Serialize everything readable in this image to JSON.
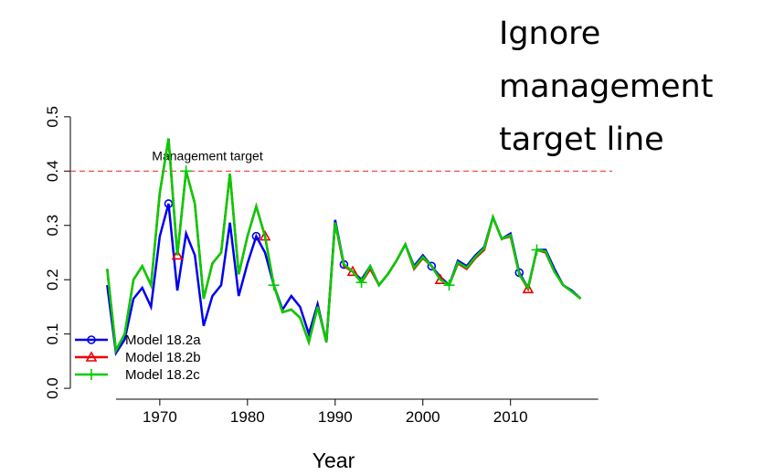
{
  "chart_data": {
    "type": "line",
    "x_label": "Year",
    "note": "Ignore management target line",
    "reference_line": {
      "value": 0.4,
      "label": "Management target",
      "color": "#ee3b3b"
    },
    "x": [
      1964,
      1965,
      1966,
      1967,
      1968,
      1969,
      1970,
      1971,
      1972,
      1973,
      1974,
      1975,
      1976,
      1977,
      1978,
      1979,
      1980,
      1981,
      1982,
      1983,
      1984,
      1985,
      1986,
      1987,
      1988,
      1989,
      1990,
      1991,
      1992,
      1993,
      1994,
      1995,
      1996,
      1997,
      1998,
      1999,
      2000,
      2001,
      2002,
      2003,
      2004,
      2005,
      2006,
      2007,
      2008,
      2009,
      2010,
      2011,
      2012,
      2013,
      2014,
      2015,
      2016,
      2017,
      2018
    ],
    "series": [
      {
        "name": "Model 18.2a",
        "color": "#0000ee",
        "marker": "circle",
        "values": [
          0.19,
          0.065,
          0.09,
          0.165,
          0.185,
          0.15,
          0.28,
          0.34,
          0.18,
          0.285,
          0.245,
          0.115,
          0.17,
          0.19,
          0.305,
          0.17,
          0.23,
          0.28,
          0.25,
          0.19,
          0.145,
          0.17,
          0.15,
          0.1,
          0.155,
          0.085,
          0.31,
          0.228,
          0.215,
          0.2,
          0.225,
          0.19,
          0.21,
          0.235,
          0.265,
          0.225,
          0.245,
          0.225,
          0.205,
          0.19,
          0.235,
          0.225,
          0.245,
          0.26,
          0.315,
          0.275,
          0.285,
          0.213,
          0.185,
          0.255,
          0.255,
          0.22,
          0.19,
          0.18,
          0.165
        ]
      },
      {
        "name": "Model 18.2b",
        "color": "#ee0000",
        "marker": "triangle",
        "values": [
          0.22,
          0.07,
          0.1,
          0.2,
          0.225,
          0.19,
          0.36,
          0.46,
          0.245,
          0.4,
          0.34,
          0.165,
          0.23,
          0.25,
          0.395,
          0.21,
          0.28,
          0.335,
          0.28,
          0.19,
          0.14,
          0.145,
          0.13,
          0.085,
          0.15,
          0.085,
          0.305,
          0.225,
          0.215,
          0.195,
          0.22,
          0.19,
          0.21,
          0.235,
          0.265,
          0.22,
          0.24,
          0.225,
          0.2,
          0.19,
          0.23,
          0.22,
          0.24,
          0.255,
          0.315,
          0.275,
          0.28,
          0.21,
          0.183,
          0.255,
          0.25,
          0.215,
          0.19,
          0.178,
          0.165
        ]
      },
      {
        "name": "Model 18.2c",
        "color": "#00cd00",
        "marker": "plus",
        "values": [
          0.22,
          0.07,
          0.1,
          0.2,
          0.225,
          0.19,
          0.36,
          0.46,
          0.245,
          0.4,
          0.34,
          0.165,
          0.23,
          0.25,
          0.395,
          0.21,
          0.28,
          0.335,
          0.28,
          0.19,
          0.14,
          0.145,
          0.13,
          0.085,
          0.15,
          0.085,
          0.305,
          0.228,
          0.215,
          0.195,
          0.225,
          0.19,
          0.21,
          0.235,
          0.265,
          0.222,
          0.242,
          0.225,
          0.2,
          0.19,
          0.232,
          0.222,
          0.242,
          0.258,
          0.315,
          0.275,
          0.282,
          0.21,
          0.185,
          0.255,
          0.252,
          0.215,
          0.19,
          0.178,
          0.165
        ]
      }
    ],
    "xlim": [
      1959.8,
      2021.6
    ],
    "ylim": [
      -0.02,
      0.53
    ],
    "xticks": [
      1970,
      1980,
      1990,
      2000,
      2010
    ],
    "yticks": [
      {
        "value": 0,
        "label": "0.0"
      },
      0.1,
      0.2,
      0.3,
      0.4,
      0.5
    ]
  }
}
